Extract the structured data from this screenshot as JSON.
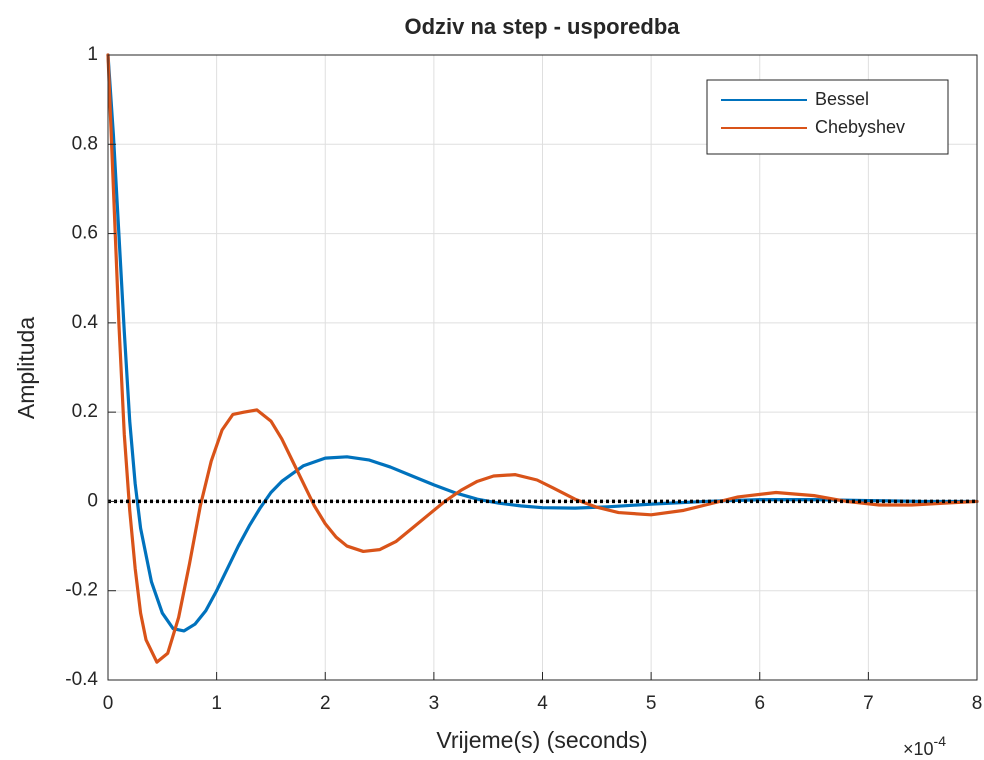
{
  "chart_data": {
    "type": "line",
    "title": "Odziv na step - usporedba",
    "x_label": "Vrijeme(s) (seconds)",
    "y_label": "Amplituda",
    "x_exponent": {
      "base": "×10",
      "power": "-4"
    },
    "xlim": [
      0,
      8
    ],
    "xticks": [
      0,
      1,
      2,
      3,
      4,
      5,
      6,
      7,
      8
    ],
    "ylim": [
      -0.4,
      1
    ],
    "yticks": [
      -0.4,
      -0.2,
      0,
      0.2,
      0.4,
      0.6,
      0.8,
      1
    ],
    "grid": true,
    "legend": "northeast",
    "reference_line": {
      "y": 0,
      "style": "dotted",
      "color": "#000000"
    },
    "series": [
      {
        "name": "Bessel",
        "color": "#0072bd",
        "x": [
          0,
          0.05,
          0.1,
          0.15,
          0.2,
          0.25,
          0.3,
          0.4,
          0.5,
          0.6,
          0.7,
          0.8,
          0.9,
          1.0,
          1.1,
          1.2,
          1.3,
          1.4,
          1.5,
          1.6,
          1.8,
          2.0,
          2.2,
          2.4,
          2.6,
          2.8,
          3.0,
          3.2,
          3.4,
          3.6,
          3.8,
          4.0,
          4.3,
          4.6,
          5.0,
          5.5,
          6.0,
          6.5,
          7.0,
          7.5,
          8.0
        ],
        "values": [
          1,
          0.82,
          0.6,
          0.38,
          0.18,
          0.04,
          -0.06,
          -0.18,
          -0.25,
          -0.285,
          -0.29,
          -0.275,
          -0.245,
          -0.2,
          -0.15,
          -0.1,
          -0.055,
          -0.015,
          0.02,
          0.045,
          0.08,
          0.097,
          0.1,
          0.093,
          0.077,
          0.057,
          0.037,
          0.019,
          0.005,
          -0.004,
          -0.01,
          -0.014,
          -0.015,
          -0.012,
          -0.006,
          0,
          0.004,
          0.004,
          0.002,
          0,
          0
        ]
      },
      {
        "name": "Chebyshev",
        "color": "#d95319",
        "x": [
          0,
          0.05,
          0.1,
          0.15,
          0.2,
          0.25,
          0.3,
          0.35,
          0.45,
          0.55,
          0.65,
          0.75,
          0.85,
          0.95,
          1.05,
          1.15,
          1.25,
          1.37,
          1.5,
          1.6,
          1.7,
          1.8,
          1.9,
          2.0,
          2.1,
          2.2,
          2.35,
          2.5,
          2.65,
          2.8,
          2.95,
          3.1,
          3.25,
          3.4,
          3.55,
          3.75,
          3.95,
          4.1,
          4.3,
          4.5,
          4.7,
          5.0,
          5.3,
          5.5,
          5.8,
          6.15,
          6.5,
          6.8,
          7.1,
          7.4,
          7.7,
          8.0
        ],
        "values": [
          1,
          0.7,
          0.4,
          0.15,
          -0.02,
          -0.15,
          -0.25,
          -0.31,
          -0.36,
          -0.34,
          -0.26,
          -0.14,
          -0.01,
          0.09,
          0.16,
          0.195,
          0.2,
          0.205,
          0.18,
          0.14,
          0.09,
          0.04,
          -0.01,
          -0.05,
          -0.08,
          -0.1,
          -0.112,
          -0.108,
          -0.09,
          -0.06,
          -0.03,
          0,
          0.025,
          0.045,
          0.057,
          0.06,
          0.048,
          0.03,
          0.005,
          -0.013,
          -0.025,
          -0.03,
          -0.02,
          -0.008,
          0.01,
          0.02,
          0.013,
          0,
          -0.008,
          -0.008,
          -0.004,
          0
        ]
      }
    ]
  }
}
